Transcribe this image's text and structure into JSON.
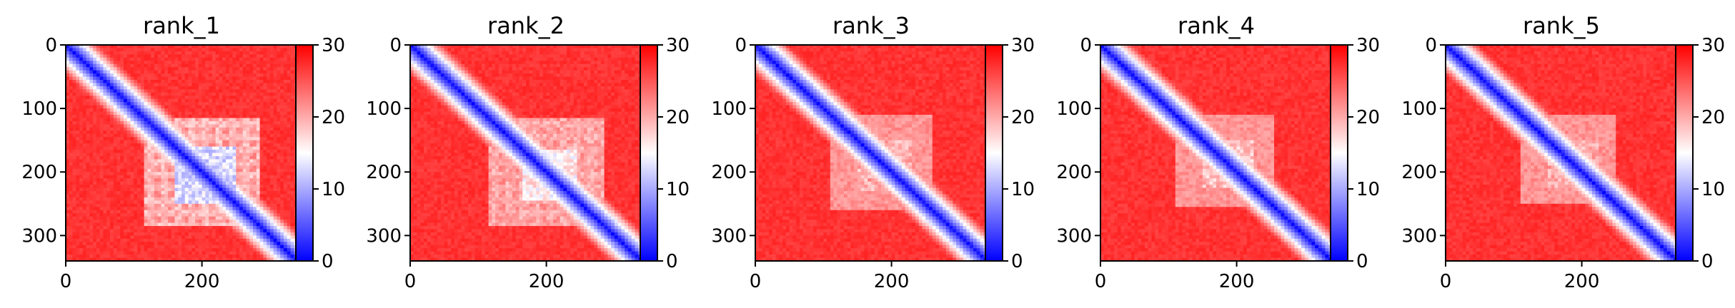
{
  "chart_data": [
    {
      "type": "heatmap",
      "title": "rank_1",
      "x_ticks": [
        0,
        200
      ],
      "y_ticks": [
        0,
        100,
        200,
        300
      ],
      "xlim": [
        0,
        340
      ],
      "ylim": [
        340,
        0
      ],
      "colorbar": {
        "min": 0,
        "max": 30,
        "ticks": [
          0,
          10,
          20,
          30
        ],
        "colormap": "bwr"
      },
      "pattern": {
        "diagonal_value": 0,
        "background_value": 28,
        "block": {
          "start": 115,
          "end": 285,
          "core_start": 160,
          "core_end": 250,
          "core_value": 10,
          "grid_value": 17
        }
      }
    },
    {
      "type": "heatmap",
      "title": "rank_2",
      "x_ticks": [
        0,
        200
      ],
      "y_ticks": [
        0,
        100,
        200,
        300
      ],
      "xlim": [
        0,
        340
      ],
      "ylim": [
        340,
        0
      ],
      "colorbar": {
        "min": 0,
        "max": 30,
        "ticks": [
          0,
          10,
          20,
          30
        ],
        "colormap": "bwr"
      },
      "pattern": {
        "diagonal_value": 0,
        "background_value": 28,
        "block": {
          "start": 115,
          "end": 285,
          "core_start": 165,
          "core_end": 245,
          "core_value": 13,
          "grid_value": 18
        }
      }
    },
    {
      "type": "heatmap",
      "title": "rank_3",
      "x_ticks": [
        0,
        200
      ],
      "y_ticks": [
        0,
        100,
        200,
        300
      ],
      "xlim": [
        0,
        340
      ],
      "ylim": [
        340,
        0
      ],
      "colorbar": {
        "min": 0,
        "max": 30,
        "ticks": [
          0,
          10,
          20,
          30
        ],
        "colormap": "bwr"
      },
      "pattern": {
        "diagonal_value": 0,
        "background_value": 28,
        "block": {
          "start": 110,
          "end": 260,
          "core_start": 150,
          "core_end": 230,
          "core_value": 17,
          "grid_value": 20
        }
      }
    },
    {
      "type": "heatmap",
      "title": "rank_4",
      "x_ticks": [
        0,
        200
      ],
      "y_ticks": [
        0,
        100,
        200,
        300
      ],
      "xlim": [
        0,
        340
      ],
      "ylim": [
        340,
        0
      ],
      "colorbar": {
        "min": 0,
        "max": 30,
        "ticks": [
          0,
          10,
          20,
          30
        ],
        "colormap": "bwr"
      },
      "pattern": {
        "diagonal_value": 0,
        "background_value": 28,
        "block": {
          "start": 110,
          "end": 255,
          "core_start": 150,
          "core_end": 225,
          "core_value": 16,
          "grid_value": 20
        }
      }
    },
    {
      "type": "heatmap",
      "title": "rank_5",
      "x_ticks": [
        0,
        200
      ],
      "y_ticks": [
        0,
        100,
        200,
        300
      ],
      "xlim": [
        0,
        340
      ],
      "ylim": [
        340,
        0
      ],
      "colorbar": {
        "min": 0,
        "max": 30,
        "ticks": [
          0,
          10,
          20,
          30
        ],
        "colormap": "bwr"
      },
      "pattern": {
        "diagonal_value": 0,
        "background_value": 28,
        "block": {
          "start": 110,
          "end": 250,
          "core_start": 150,
          "core_end": 225,
          "core_value": 17,
          "grid_value": 20
        }
      }
    }
  ]
}
